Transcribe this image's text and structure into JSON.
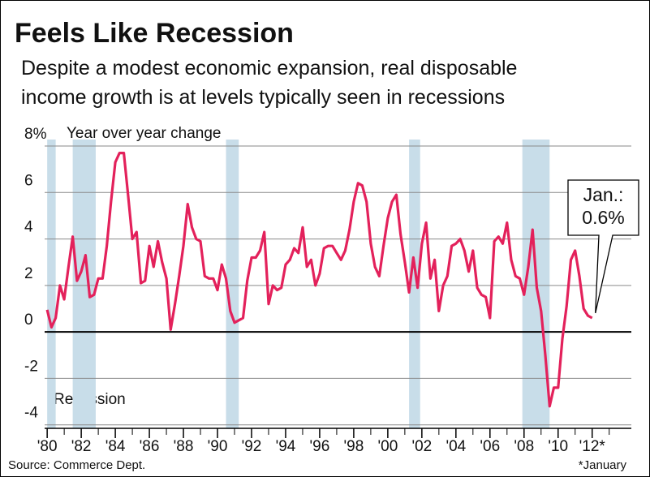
{
  "chart_data": {
    "type": "line",
    "title": "Feels Like Recession",
    "subtitle": [
      "Despite a modest economic expansion, real disposable",
      "income growth is at levels typically seen in recessions"
    ],
    "y_axis_label": "Year over year change",
    "recession_label": "Recession",
    "source": "Source: Commerce Dept.",
    "footnote": "*January",
    "annotation": [
      "Jan.:",
      "0.6%"
    ],
    "recessions": [
      [
        1980.0,
        1980.5
      ],
      [
        1981.5,
        1982.85
      ],
      [
        1990.5,
        1991.25
      ],
      [
        2001.25,
        2001.9
      ],
      [
        2007.9,
        2009.5
      ]
    ],
    "recession_color": "#c8dde9",
    "xlim": [
      1979.85,
      2014.3
    ],
    "ylim": [
      -4.15,
      8
    ],
    "yticks": [
      {
        "value": 8,
        "label": "8%"
      },
      6,
      4,
      2,
      0,
      -2,
      -4
    ],
    "xticks": [
      {
        "value": 1980,
        "label": "'80"
      },
      {
        "value": 1982,
        "label": "'82"
      },
      {
        "value": 1984,
        "label": "'84"
      },
      {
        "value": 1986,
        "label": "'86"
      },
      {
        "value": 1988,
        "label": "'88"
      },
      {
        "value": 1990,
        "label": "'90"
      },
      {
        "value": 1992,
        "label": "'92"
      },
      {
        "value": 1994,
        "label": "'94"
      },
      {
        "value": 1996,
        "label": "'96"
      },
      {
        "value": 1998,
        "label": "'98"
      },
      {
        "value": 2000,
        "label": "'00"
      },
      {
        "value": 2002,
        "label": "'02"
      },
      {
        "value": 2004,
        "label": "'04"
      },
      {
        "value": 2006,
        "label": "'06"
      },
      {
        "value": 2008,
        "label": "'08"
      },
      {
        "value": 2010,
        "label": "'10"
      },
      {
        "value": 2012,
        "label": "'12*"
      }
    ],
    "xminorticks": [
      1981,
      1983,
      1985,
      1987,
      1989,
      1991,
      1993,
      1995,
      1997,
      1999,
      2001,
      2003,
      2005,
      2007,
      2009,
      2011,
      2013
    ],
    "grid": true,
    "series": [
      {
        "name": "Real disposable income growth",
        "color": "#e3215b",
        "x": [
          1980,
          1980.25,
          1980.5,
          1980.75,
          1981,
          1981.25,
          1981.5,
          1981.75,
          1982,
          1982.25,
          1982.5,
          1982.75,
          1983,
          1983.25,
          1983.5,
          1983.75,
          1984,
          1984.25,
          1984.5,
          1984.75,
          1985,
          1985.25,
          1985.5,
          1985.75,
          1986,
          1986.25,
          1986.5,
          1986.75,
          1987,
          1987.25,
          1987.5,
          1987.75,
          1988,
          1988.25,
          1988.5,
          1988.75,
          1989,
          1989.25,
          1989.5,
          1989.75,
          1990,
          1990.25,
          1990.5,
          1990.75,
          1991,
          1991.25,
          1991.5,
          1991.75,
          1992,
          1992.25,
          1992.5,
          1992.75,
          1993,
          1993.25,
          1993.5,
          1993.75,
          1994,
          1994.25,
          1994.5,
          1994.75,
          1995,
          1995.25,
          1995.5,
          1995.75,
          1996,
          1996.25,
          1996.5,
          1996.75,
          1997,
          1997.25,
          1997.5,
          1997.75,
          1998,
          1998.25,
          1998.5,
          1998.75,
          1999,
          1999.25,
          1999.5,
          1999.75,
          2000,
          2000.25,
          2000.5,
          2000.75,
          2001,
          2001.25,
          2001.5,
          2001.75,
          2002,
          2002.25,
          2002.5,
          2002.75,
          2003,
          2003.25,
          2003.5,
          2003.75,
          2004,
          2004.25,
          2004.5,
          2004.75,
          2005,
          2005.25,
          2005.5,
          2005.75,
          2006,
          2006.25,
          2006.5,
          2006.75,
          2007,
          2007.25,
          2007.5,
          2007.75,
          2008,
          2008.25,
          2008.5,
          2008.75,
          2009,
          2009.25,
          2009.5,
          2009.75,
          2010,
          2010.25,
          2010.5,
          2010.75,
          2011,
          2011.25,
          2011.5,
          2011.75,
          2012
        ],
        "values": [
          0.95,
          0.2,
          0.6,
          2.0,
          1.4,
          2.8,
          4.1,
          2.2,
          2.6,
          3.3,
          1.5,
          1.6,
          2.3,
          2.3,
          3.7,
          5.6,
          7.3,
          7.7,
          7.7,
          5.9,
          4.0,
          4.3,
          2.1,
          2.2,
          3.7,
          2.8,
          3.9,
          3.0,
          2.3,
          0.1,
          1.2,
          2.4,
          3.7,
          5.5,
          4.5,
          4.0,
          3.9,
          2.4,
          2.3,
          2.3,
          1.8,
          2.9,
          2.3,
          0.9,
          0.4,
          0.5,
          0.6,
          2.2,
          3.2,
          3.2,
          3.5,
          4.3,
          1.2,
          2.0,
          1.8,
          1.9,
          2.9,
          3.1,
          3.6,
          3.4,
          4.5,
          2.8,
          3.1,
          2.0,
          2.5,
          3.6,
          3.7,
          3.7,
          3.4,
          3.1,
          3.5,
          4.4,
          5.6,
          6.4,
          6.3,
          5.6,
          3.8,
          2.8,
          2.4,
          3.7,
          4.9,
          5.6,
          5.9,
          4.2,
          3.0,
          1.7,
          3.2,
          1.9,
          3.8,
          4.7,
          2.3,
          3.1,
          0.9,
          2.0,
          2.4,
          3.7,
          3.8,
          4.0,
          3.5,
          2.6,
          3.5,
          1.9,
          1.6,
          1.5,
          0.6,
          3.9,
          4.1,
          3.8,
          4.7,
          3.1,
          2.4,
          2.3,
          1.6,
          2.8,
          4.4,
          1.9,
          0.9,
          -1.0,
          -3.2,
          -2.4,
          -2.4,
          -0.3,
          1.1,
          3.1,
          3.5,
          2.4,
          1.0,
          0.7,
          0.6
        ]
      }
    ]
  }
}
